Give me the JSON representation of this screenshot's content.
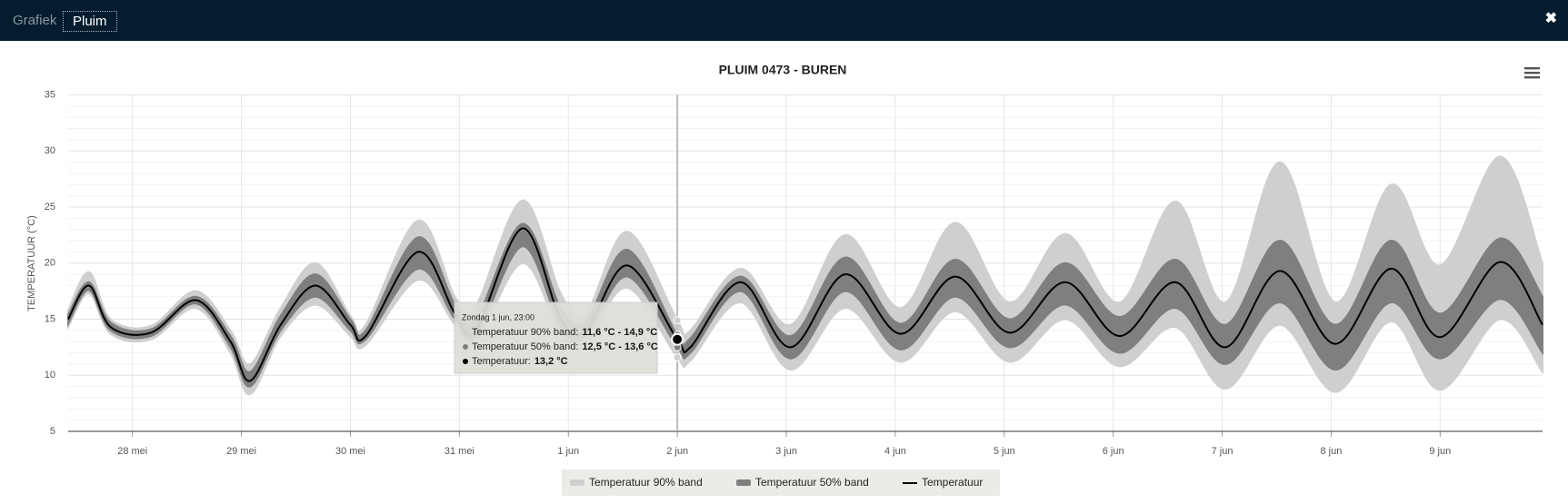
{
  "tabs": [
    "Grafiek",
    "Pluim"
  ],
  "close": "✖",
  "chart_data": {
    "type": "line",
    "title": "PLUIM 0473 - BUREN",
    "y_label": "TEMPERATUUR (°C)",
    "x": [
      -0.59,
      -0.4,
      -0.2,
      0.17,
      0.58,
      0.9,
      1.08,
      1.36,
      1.68,
      2.0,
      2.14,
      2.62,
      2.96,
      3.15,
      3.58,
      3.93,
      4.16,
      4.54,
      5.0,
      5.12,
      5.58,
      6.04,
      6.54,
      7.05,
      7.55,
      8.05,
      8.56,
      9.06,
      9.57,
      10.03,
      10.53,
      11.04,
      11.55,
      12.0,
      12.55,
      12.94
    ],
    "xlim": [
      -0.59,
      12.94
    ],
    "xticks": [
      {
        "value": 0,
        "label": "28 mei"
      },
      {
        "value": 1,
        "label": "29 mei"
      },
      {
        "value": 2,
        "label": "30 mei"
      },
      {
        "value": 3,
        "label": "31 mei"
      },
      {
        "value": 4,
        "label": "1 jun"
      },
      {
        "value": 5,
        "label": "2 jun"
      },
      {
        "value": 6,
        "label": "3 jun"
      },
      {
        "value": 7,
        "label": "4 jun"
      },
      {
        "value": 8,
        "label": "5 jun"
      },
      {
        "value": 9,
        "label": "6 jun"
      },
      {
        "value": 10,
        "label": "7 jun"
      },
      {
        "value": 11,
        "label": "8 jun"
      },
      {
        "value": 12,
        "label": "9 jun"
      }
    ],
    "ylim": [
      5,
      35
    ],
    "yticks": [
      5,
      10,
      15,
      20,
      25,
      30,
      35
    ],
    "grid": true,
    "series": [
      {
        "name": "Temperatuur 90% band",
        "color": "#cfcfcf",
        "low": [
          14.3,
          17.3,
          13.7,
          13.2,
          16,
          12,
          8.3,
          13.5,
          16.3,
          13.5,
          12.7,
          18.5,
          14.5,
          13,
          20,
          13.7,
          13,
          17.8,
          11.6,
          11.3,
          16.5,
          10.5,
          16,
          11.2,
          15.7,
          11.2,
          15,
          10.8,
          14.3,
          8.8,
          14.5,
          8.5,
          14.8,
          8.7,
          15,
          10.3
        ],
        "high": [
          15.8,
          19.2,
          15,
          14.4,
          17.5,
          14,
          11,
          16,
          20,
          15.3,
          14.5,
          23.8,
          17,
          16.2,
          25.6,
          17.3,
          15.5,
          22.8,
          14.9,
          14,
          19.5,
          14.5,
          22.5,
          16,
          23.6,
          16.5,
          22.6,
          16.5,
          25.5,
          16.5,
          29,
          16.5,
          27,
          19.8,
          29.5,
          20
        ]
      },
      {
        "name": "Temperatuur 50% band",
        "color": "#7f7f7f",
        "low": [
          14.6,
          17.6,
          14,
          13.5,
          16.4,
          12.5,
          9,
          14,
          17,
          14,
          13.2,
          19.5,
          15,
          13.5,
          21.5,
          14.3,
          13.5,
          18.8,
          12.5,
          12,
          17.5,
          11.5,
          17.5,
          12.3,
          17,
          12.5,
          16.3,
          12,
          16,
          11,
          16.5,
          10.5,
          16.5,
          11.5,
          16.8,
          12
        ],
        "high": [
          15.4,
          18.3,
          14.7,
          14.1,
          17,
          13.5,
          10.3,
          15.3,
          19,
          15,
          14,
          22.3,
          16.3,
          15,
          23.5,
          16,
          14.8,
          21.2,
          13.6,
          13.3,
          18.8,
          13.5,
          20.5,
          14.6,
          20.3,
          15,
          20,
          15.2,
          20.3,
          14.5,
          22,
          14.5,
          22,
          15.5,
          22.2,
          17
        ]
      },
      {
        "name": "Temperatuur",
        "color": "#000000",
        "values": [
          15,
          18,
          14.3,
          13.8,
          16.7,
          13,
          9.5,
          14.5,
          18,
          14.5,
          13.5,
          21,
          15.5,
          14,
          23.1,
          15,
          14,
          19.8,
          13.2,
          12.5,
          18.3,
          12.5,
          19,
          13.7,
          18.8,
          13.8,
          18.3,
          13.5,
          18.3,
          12.5,
          19.3,
          12.8,
          19.5,
          13.4,
          20.1,
          14.5
        ]
      }
    ],
    "tooltip": {
      "title": "Zondag 1 jun, 23:00",
      "rows": [
        {
          "label": "Temperatuur 90% band:",
          "text": "11,6 °C - 14,9 °C"
        },
        {
          "label": "Temperatuur 50% band:",
          "text": "12,5 °C - 13,6 °C"
        },
        {
          "label": "Temperatuur:",
          "text": "13,2 °C"
        }
      ]
    }
  }
}
